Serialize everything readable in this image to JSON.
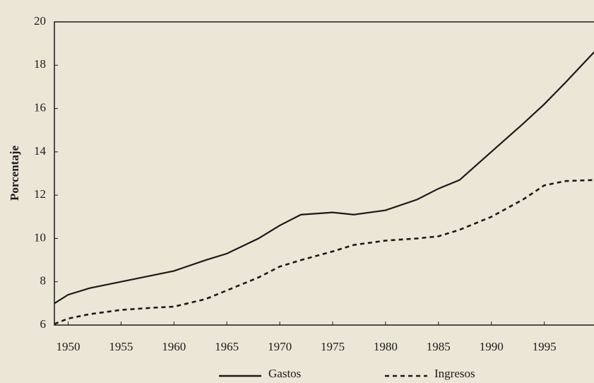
{
  "chart_data": {
    "type": "line",
    "y_label": "Porcentaje",
    "x": [
      1948.7,
      1950,
      1952,
      1955,
      1958,
      1960,
      1963,
      1965,
      1968,
      1970,
      1972,
      1975,
      1977,
      1980,
      1983,
      1985,
      1987,
      1990,
      1993,
      1995,
      1997,
      1999.7
    ],
    "series": [
      {
        "name": "Gastos",
        "color": "#1a1a1a",
        "dash": false,
        "values": [
          7.0,
          7.4,
          7.7,
          8.0,
          8.3,
          8.5,
          9.0,
          9.3,
          10.0,
          10.6,
          11.1,
          11.2,
          11.1,
          11.3,
          11.8,
          12.3,
          12.7,
          14.0,
          15.3,
          16.2,
          17.2,
          18.6
        ]
      },
      {
        "name": "Ingresos",
        "color": "#1a1a1a",
        "dash": true,
        "values": [
          6.05,
          6.3,
          6.5,
          6.7,
          6.8,
          6.85,
          7.2,
          7.6,
          8.2,
          8.7,
          9.0,
          9.4,
          9.7,
          9.9,
          10.0,
          10.1,
          10.4,
          11.0,
          11.8,
          12.45,
          12.65,
          12.7
        ]
      }
    ],
    "xlim": [
      1948.7,
      1999.7
    ],
    "ylim": [
      6,
      20
    ],
    "xticks": [
      1950,
      1955,
      1960,
      1965,
      1970,
      1975,
      1980,
      1985,
      1990,
      1995
    ],
    "yticks": [
      6,
      8,
      10,
      12,
      14,
      16,
      18,
      20
    ],
    "legend": "bottom"
  }
}
